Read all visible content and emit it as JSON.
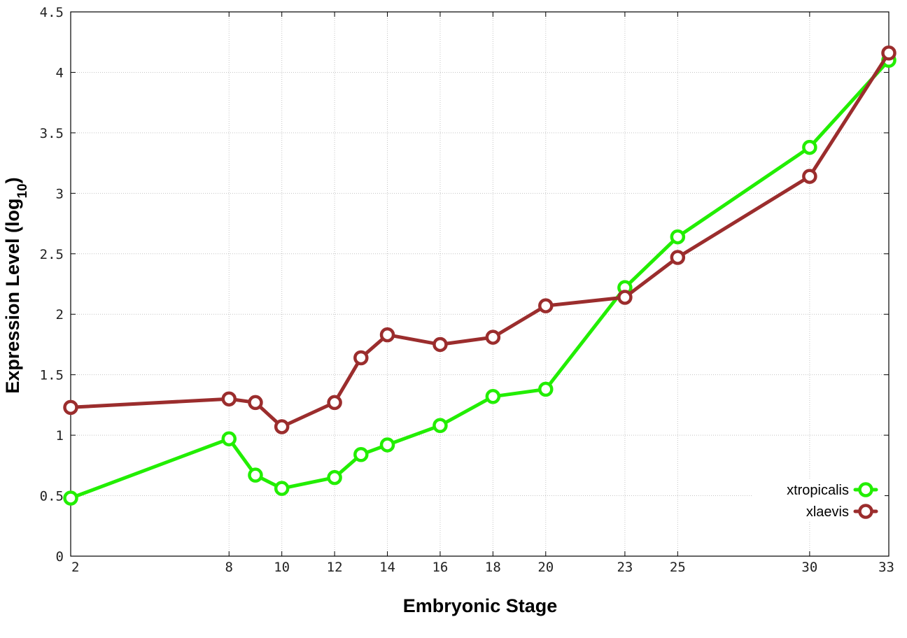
{
  "chart_data": {
    "type": "line",
    "xlabel": "Embryonic Stage",
    "ylabel": {
      "main": "Expression Level (log",
      "subscript": "10",
      "suffix": ")"
    },
    "x_ticks": [
      "2",
      "8",
      "10",
      "12",
      "14",
      "16",
      "18",
      "20",
      "23",
      "25",
      "30",
      "33"
    ],
    "ylim": [
      0,
      4.5
    ],
    "y_ticks": [
      0,
      0.5,
      1,
      1.5,
      2,
      2.5,
      3,
      3.5,
      4,
      4.5
    ],
    "y_tick_labels": [
      "0",
      "0.5",
      "1",
      "1.5",
      "2",
      "2.5",
      "3",
      "3.5",
      "4",
      "4.5"
    ],
    "grid": true,
    "legend_position": "bottom-right",
    "series": [
      {
        "name": "xtropicalis",
        "color": "#22ee00",
        "x": [
          "2",
          "8",
          "9",
          "10",
          "12",
          "13",
          "14",
          "16",
          "18",
          "20",
          "23",
          "25",
          "30",
          "33"
        ],
        "values": [
          0.48,
          0.97,
          0.67,
          0.56,
          0.65,
          0.84,
          0.92,
          1.08,
          1.32,
          1.38,
          2.22,
          2.64,
          3.38,
          4.1
        ]
      },
      {
        "name": "xlaevis",
        "color": "#9b2d2d",
        "x": [
          "2",
          "8",
          "9",
          "10",
          "12",
          "13",
          "14",
          "16",
          "18",
          "20",
          "23",
          "25",
          "30",
          "33"
        ],
        "values": [
          1.23,
          1.3,
          1.27,
          1.07,
          1.27,
          1.64,
          1.83,
          1.75,
          1.81,
          2.07,
          2.14,
          2.47,
          3.14,
          4.16
        ]
      }
    ]
  }
}
